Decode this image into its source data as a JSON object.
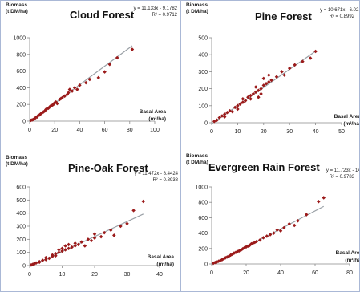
{
  "colors": {
    "marker": "#9b1a1a",
    "trendline": "#9aa0a6",
    "axis": "#8a8a8a",
    "panel_border": "#aab8d6"
  },
  "chart_data": [
    {
      "type": "scatter",
      "title": "Cloud Forest",
      "ylabel_line1": "Biomass",
      "ylabel_line2": "(t DM/ha)",
      "xlabel_line1": "Basal Area",
      "xlabel_line2": "(m²/ha)",
      "equation": "y = 11.133x - 9.1782",
      "r2": "R² = 0.9712",
      "slope": 11.133,
      "intercept": -9.1782,
      "xlim": [
        0,
        100
      ],
      "ylim": [
        0,
        1000
      ],
      "xticks": [
        0,
        20,
        40,
        60,
        80,
        100
      ],
      "yticks": [
        0,
        200,
        400,
        600,
        800,
        1000
      ],
      "x": [
        1,
        2,
        3,
        4,
        5,
        6,
        7,
        8,
        9,
        10,
        11,
        12,
        13,
        14,
        15,
        16,
        17,
        18,
        19,
        20,
        21,
        22,
        24,
        25,
        26,
        28,
        30,
        31,
        32,
        34,
        36,
        38,
        40,
        45,
        48,
        55,
        60,
        64,
        70,
        82
      ],
      "y": [
        10,
        15,
        20,
        30,
        45,
        50,
        70,
        75,
        90,
        100,
        110,
        120,
        140,
        150,
        155,
        170,
        185,
        190,
        200,
        220,
        230,
        210,
        260,
        270,
        280,
        300,
        320,
        340,
        380,
        360,
        400,
        380,
        430,
        460,
        500,
        520,
        590,
        680,
        760,
        860
      ]
    },
    {
      "type": "scatter",
      "title": "Pine Forest",
      "ylabel_line1": "Biomass",
      "ylabel_line2": "(t DM/ha)",
      "xlabel_line1": "Basal Area",
      "xlabel_line2": "(m²/ha)",
      "equation": "y = 10.671x - 6.0215",
      "r2": "R² = 0.8992",
      "slope": 10.671,
      "intercept": -6.0215,
      "xlim": [
        0,
        50
      ],
      "ylim": [
        0,
        500
      ],
      "xticks": [
        0,
        10,
        20,
        30,
        40,
        50
      ],
      "yticks": [
        0,
        100,
        200,
        300,
        400,
        500
      ],
      "x": [
        1,
        2,
        3,
        4,
        5,
        5,
        6,
        7,
        8,
        9,
        10,
        10,
        11,
        12,
        12,
        13,
        14,
        15,
        15,
        16,
        17,
        17,
        18,
        18,
        19,
        19,
        20,
        20,
        21,
        22,
        22,
        23,
        25,
        27,
        28,
        30,
        32,
        35,
        38,
        40
      ],
      "y": [
        8,
        15,
        30,
        40,
        50,
        35,
        60,
        70,
        65,
        90,
        100,
        80,
        110,
        120,
        140,
        130,
        150,
        160,
        140,
        170,
        180,
        210,
        190,
        150,
        200,
        170,
        220,
        260,
        230,
        240,
        280,
        250,
        270,
        300,
        280,
        320,
        340,
        360,
        380,
        420
      ]
    },
    {
      "type": "scatter",
      "title": "Pine-Oak Forest",
      "ylabel_line1": "Biomass",
      "ylabel_line2": "(t DM/ha)",
      "xlabel_line1": "Basal Area",
      "xlabel_line2": "(m²/ha)",
      "equation": "y = 11.472x - 8.4424",
      "r2": "R² = 0.8938",
      "slope": 11.472,
      "intercept": -8.4424,
      "xlim": [
        0,
        40
      ],
      "ylim": [
        0,
        600
      ],
      "xticks": [
        0,
        10,
        20,
        30,
        40
      ],
      "yticks": [
        0,
        100,
        200,
        300,
        400,
        500,
        600
      ],
      "x": [
        0.5,
        1,
        1.5,
        2,
        3,
        3,
        4,
        5,
        5,
        6,
        7,
        7,
        8,
        8,
        9,
        9,
        10,
        10,
        11,
        11,
        12,
        12,
        13,
        14,
        14,
        15,
        16,
        17,
        18,
        19,
        20,
        20,
        22,
        23,
        25,
        26,
        28,
        30,
        32,
        35
      ],
      "y": [
        5,
        10,
        15,
        20,
        30,
        25,
        40,
        45,
        60,
        55,
        70,
        80,
        90,
        75,
        100,
        120,
        110,
        130,
        120,
        150,
        130,
        160,
        140,
        150,
        170,
        160,
        180,
        150,
        200,
        190,
        210,
        240,
        220,
        250,
        270,
        230,
        300,
        320,
        420,
        490
      ]
    },
    {
      "type": "scatter",
      "title": "Evergreen Rain Forest",
      "ylabel_line1": "Biomass",
      "ylabel_line2": "(t DM/ha)",
      "xlabel_line1": "Basal Area",
      "xlabel_line2": "(m²/ha)",
      "equation": "y = 11.723x - 14.52",
      "r2": "R² = 0.9783",
      "slope": 11.723,
      "intercept": -14.52,
      "xlim": [
        0,
        80
      ],
      "ylim": [
        0,
        1000
      ],
      "xticks": [
        0,
        20,
        40,
        60,
        80
      ],
      "yticks": [
        0,
        200,
        400,
        600,
        800,
        1000
      ],
      "x": [
        1,
        2,
        3,
        4,
        5,
        6,
        7,
        8,
        9,
        10,
        11,
        12,
        13,
        14,
        15,
        16,
        17,
        18,
        19,
        20,
        21,
        22,
        23,
        24,
        25,
        26,
        28,
        30,
        32,
        34,
        36,
        38,
        40,
        42,
        45,
        48,
        50,
        55,
        62,
        65
      ],
      "y": [
        10,
        20,
        25,
        35,
        45,
        55,
        65,
        80,
        90,
        100,
        115,
        125,
        140,
        150,
        160,
        170,
        180,
        195,
        210,
        220,
        230,
        240,
        260,
        270,
        280,
        290,
        310,
        340,
        360,
        380,
        400,
        440,
        430,
        470,
        520,
        500,
        560,
        640,
        810,
        860
      ]
    }
  ]
}
